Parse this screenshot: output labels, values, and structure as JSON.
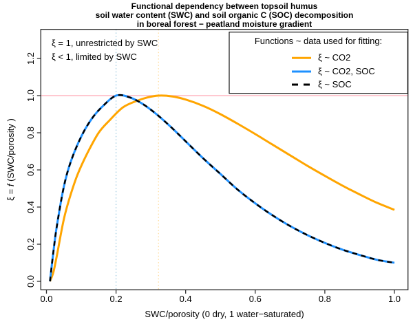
{
  "figure": {
    "title_lines": [
      "Functional dependency between topsoil humus",
      "soil water content (SWC) and soil organic C (SOC) decomposition",
      "in boreal forest − peatland moisture gradient"
    ],
    "annotation_lines": [
      "ξ = 1, unrestricted by SWC",
      "ξ < 1, limited by SWC"
    ]
  },
  "legend": {
    "title": "Functions ~ data used for fitting:",
    "items": [
      {
        "label": "ξ ~ CO2",
        "color": "#FFA500",
        "style": "solid"
      },
      {
        "label": "ξ ~ CO2, SOC",
        "color": "#1E90FF",
        "style": "solid"
      },
      {
        "label": "ξ ~ SOC",
        "color": "#000000",
        "style": "dashed"
      }
    ]
  },
  "chart_data": {
    "type": "line",
    "title": "Functional dependency between topsoil humus soil water content (SWC) and soil organic C (SOC) decomposition in boreal forest − peatland moisture gradient",
    "xlabel": "SWC/porosity (0 dry, 1 water−saturated)",
    "ylabel": "ξ = f (SWC/porosity )",
    "ylabel_parts": [
      "ξ = ",
      "f",
      " (SWC/porosity )"
    ],
    "xlim": [
      -0.016,
      1.039
    ],
    "ylim": [
      -0.046,
      1.357
    ],
    "grid": false,
    "legend_position": "top-right",
    "x_ticks": {
      "values": [
        0,
        0.2,
        0.4,
        0.6,
        0.8,
        1.0
      ],
      "labels": [
        "0.0",
        "0.2",
        "0.4",
        "0.6",
        "0.8",
        "1.0"
      ]
    },
    "y_ticks": {
      "values": [
        0,
        0.2,
        0.4,
        0.6,
        0.8,
        1.0,
        1.2
      ],
      "labels": [
        "0.0",
        "0.2",
        "0.4",
        "0.6",
        "0.8",
        "1.0",
        "1.2"
      ]
    },
    "reference_lines": [
      {
        "axis": "y",
        "value": 1.0,
        "color": "#FFB6C1",
        "style": "solid",
        "meaning": "xi = 1, unrestricted by SWC"
      },
      {
        "axis": "x",
        "value": 0.2,
        "color": "#A6CEE3",
        "style": "dotted",
        "meaning": "optimum moisture of xi ~ CO2, SOC"
      },
      {
        "axis": "x",
        "value": 0.322,
        "color": "#FFDFA6",
        "style": "dotted",
        "meaning": "optimum moisture of xi ~ CO2"
      }
    ],
    "series": [
      {
        "name": "ξ ~ CO2",
        "color": "#FFA500",
        "dash": "solid",
        "line_width": 3,
        "points": [
          [
            0.01,
            0
          ],
          [
            0.02,
            0.05
          ],
          [
            0.03,
            0.14
          ],
          [
            0.05,
            0.335
          ],
          [
            0.07,
            0.47
          ],
          [
            0.09,
            0.578
          ],
          [
            0.117,
            0.688
          ],
          [
            0.15,
            0.8
          ],
          [
            0.183,
            0.87
          ],
          [
            0.22,
            0.937
          ],
          [
            0.26,
            0.972
          ],
          [
            0.29,
            0.99
          ],
          [
            0.322,
            1.0
          ],
          [
            0.36,
            0.996
          ],
          [
            0.4,
            0.979
          ],
          [
            0.45,
            0.945
          ],
          [
            0.5,
            0.9
          ],
          [
            0.55,
            0.848
          ],
          [
            0.6,
            0.793
          ],
          [
            0.65,
            0.736
          ],
          [
            0.7,
            0.679
          ],
          [
            0.75,
            0.622
          ],
          [
            0.8,
            0.568
          ],
          [
            0.85,
            0.516
          ],
          [
            0.9,
            0.468
          ],
          [
            0.95,
            0.423
          ],
          [
            1.0,
            0.385
          ]
        ]
      },
      {
        "name": "ξ ~ CO2, SOC",
        "color": "#1E90FF",
        "dash": "solid",
        "line_width": 3,
        "points": [
          [
            0.01,
            0
          ],
          [
            0.02,
            0.16
          ],
          [
            0.03,
            0.3
          ],
          [
            0.05,
            0.51
          ],
          [
            0.07,
            0.645
          ],
          [
            0.1,
            0.78
          ],
          [
            0.13,
            0.875
          ],
          [
            0.16,
            0.94
          ],
          [
            0.2,
            1.0
          ],
          [
            0.24,
            0.99
          ],
          [
            0.28,
            0.951
          ],
          [
            0.32,
            0.894
          ],
          [
            0.36,
            0.827
          ],
          [
            0.4,
            0.754
          ],
          [
            0.45,
            0.663
          ],
          [
            0.5,
            0.578
          ],
          [
            0.55,
            0.493
          ],
          [
            0.6,
            0.42
          ],
          [
            0.65,
            0.355
          ],
          [
            0.7,
            0.298
          ],
          [
            0.75,
            0.249
          ],
          [
            0.8,
            0.207
          ],
          [
            0.85,
            0.171
          ],
          [
            0.9,
            0.142
          ],
          [
            0.95,
            0.116
          ],
          [
            1.0,
            0.1
          ]
        ]
      },
      {
        "name": "ξ ~ SOC",
        "color": "#000000",
        "dash": "dashed",
        "line_width": 2.5,
        "points": [
          [
            0.01,
            0
          ],
          [
            0.02,
            0.16
          ],
          [
            0.03,
            0.3
          ],
          [
            0.05,
            0.51
          ],
          [
            0.07,
            0.645
          ],
          [
            0.1,
            0.78
          ],
          [
            0.13,
            0.875
          ],
          [
            0.16,
            0.94
          ],
          [
            0.2,
            1.0
          ],
          [
            0.24,
            0.99
          ],
          [
            0.28,
            0.951
          ],
          [
            0.32,
            0.894
          ],
          [
            0.36,
            0.827
          ],
          [
            0.4,
            0.754
          ],
          [
            0.45,
            0.663
          ],
          [
            0.5,
            0.578
          ],
          [
            0.55,
            0.493
          ],
          [
            0.6,
            0.42
          ],
          [
            0.65,
            0.355
          ],
          [
            0.7,
            0.298
          ],
          [
            0.75,
            0.249
          ],
          [
            0.8,
            0.207
          ],
          [
            0.85,
            0.171
          ],
          [
            0.9,
            0.142
          ],
          [
            0.95,
            0.116
          ],
          [
            1.0,
            0.1
          ]
        ]
      }
    ]
  }
}
